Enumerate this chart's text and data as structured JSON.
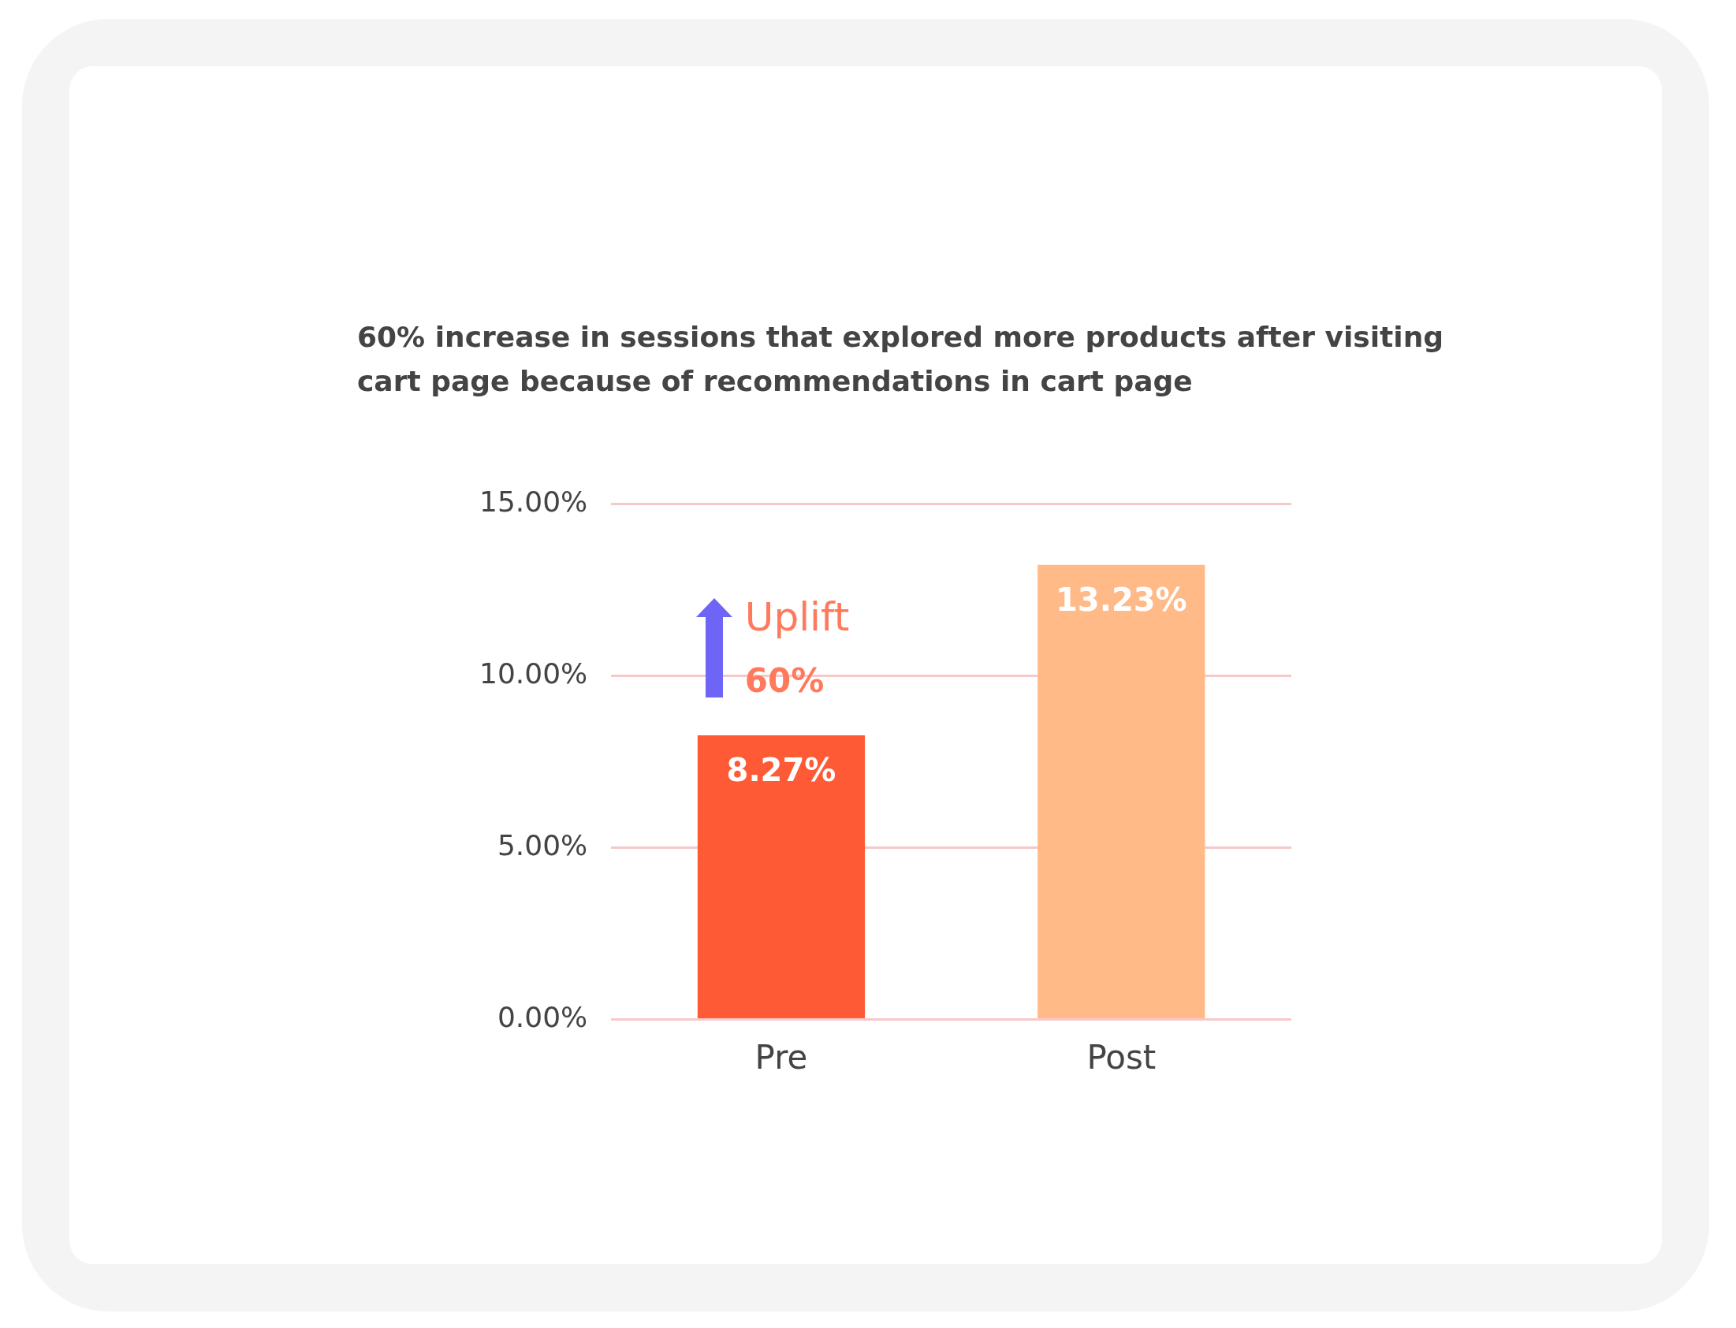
{
  "chart_data": {
    "type": "bar",
    "title": "60% increase in sessions that explored more products after visiting cart page because of recommendations in cart page",
    "categories": [
      "Pre",
      "Post"
    ],
    "values": [
      8.27,
      13.23
    ],
    "colors": [
      "#ff5a36",
      "#ffba88"
    ],
    "value_labels": [
      "8.27%",
      "13.23%"
    ],
    "ylim": [
      0,
      15
    ],
    "yticks": [
      {
        "value": 0,
        "label": "0.00%"
      },
      {
        "value": 5,
        "label": "5.00%"
      },
      {
        "value": 10,
        "label": "10.00%"
      },
      {
        "value": 15,
        "label": "15.00%"
      }
    ],
    "grid": "y",
    "legend": false,
    "annotations": [
      "Uplift",
      "60%"
    ]
  }
}
